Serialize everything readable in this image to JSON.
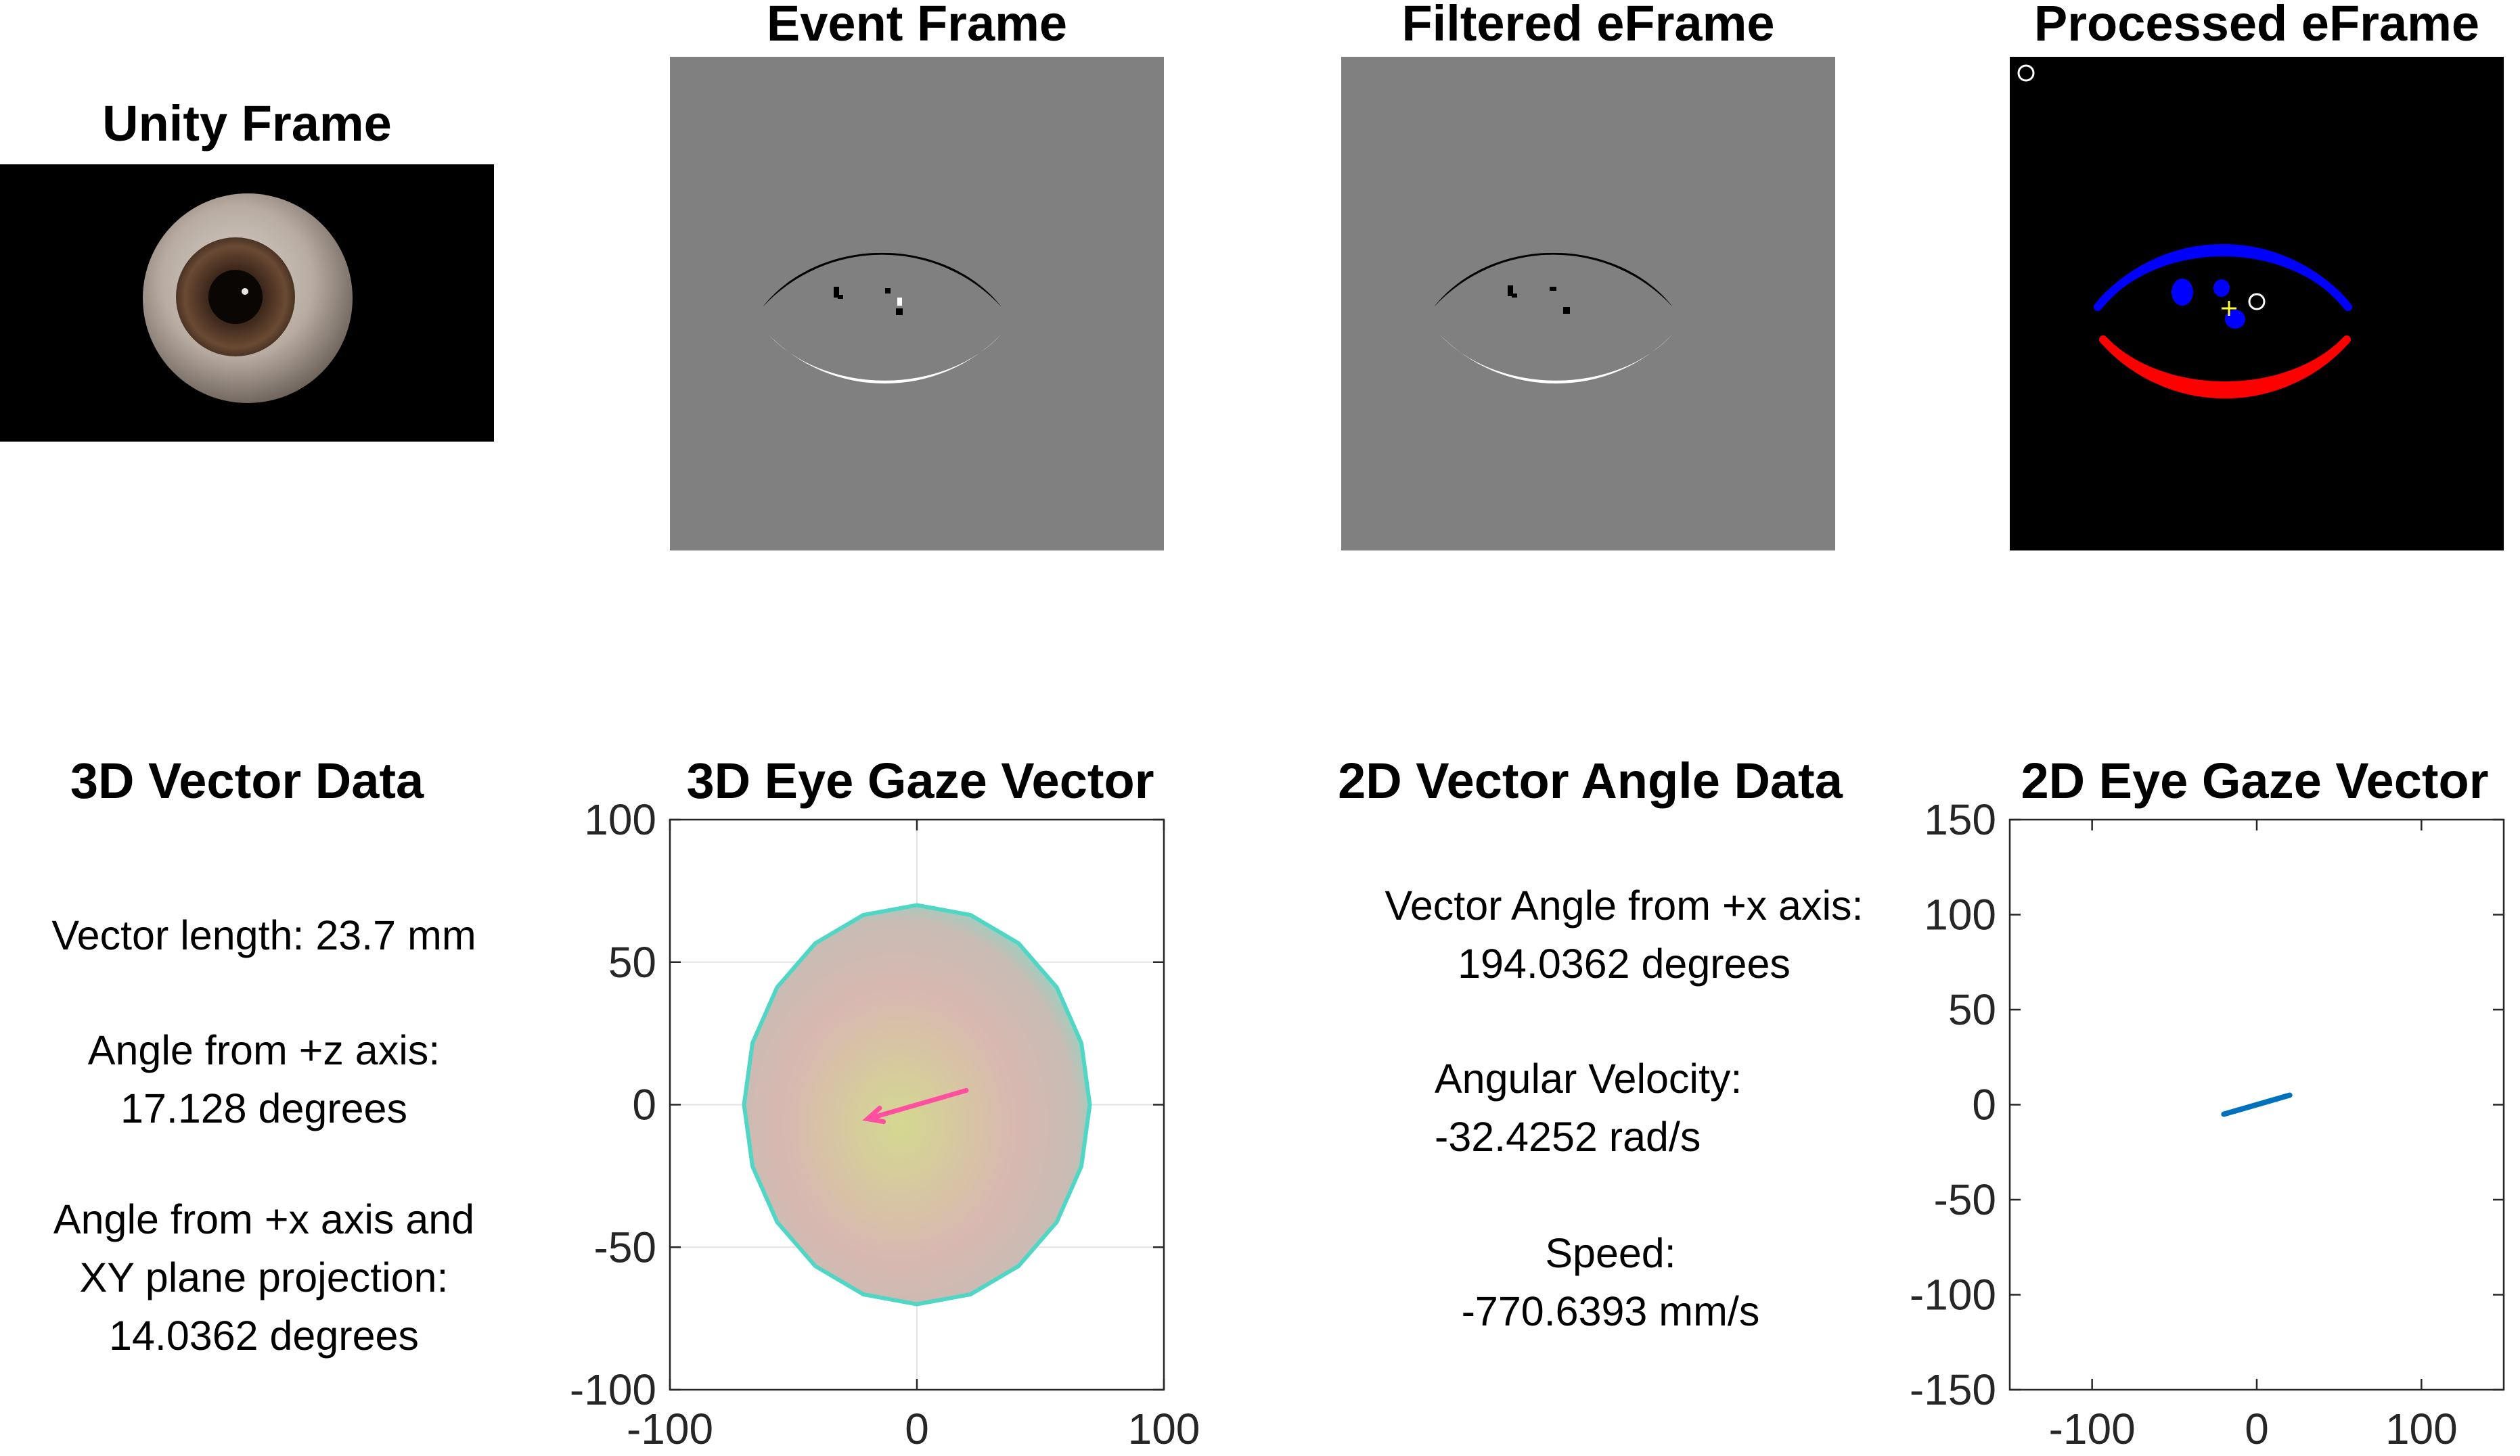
{
  "panels": {
    "unity_frame": {
      "title": "Unity Frame"
    },
    "event_frame": {
      "title": "Event Frame"
    },
    "filtered_eframe": {
      "title": "Filtered eFrame"
    },
    "processed_eframe": {
      "title": "Processed eFrame"
    }
  },
  "vector3d_data": {
    "title": "3D Vector Data",
    "length": "Vector length: 23.7 mm",
    "angle_z": "Angle from +z axis:\n17.128 degrees",
    "angle_x": "Angle from +x axis and\nXY plane projection:\n14.0362 degrees"
  },
  "vector2d_data": {
    "title": "2D Vector Angle Data",
    "angle": "Vector Angle from +x axis:\n194.0362 degrees",
    "velocity": "Angular Velocity:\n-32.4252 rad/s",
    "speed": "Speed:\n-770.6393 mm/s"
  },
  "colors": {
    "frame_gray": "#808080",
    "frame_black": "#000000",
    "blue_blob": "#0000ff",
    "red_blob": "#ff0000",
    "gaze_pink": "#ff4fa0",
    "gaze_blue": "#0072bd",
    "sphere_edge": "#4fd6c4"
  },
  "chart_data": [
    {
      "type": "line",
      "title": "3D Eye Gaze Vector",
      "xlabel": "",
      "ylabel": "",
      "xlim": [
        -100,
        100
      ],
      "ylim": [
        -100,
        100
      ],
      "xticks": [
        -100,
        0,
        100
      ],
      "yticks": [
        -100,
        -50,
        0,
        50,
        100
      ],
      "grid": true,
      "series": [
        {
          "x": [
            20,
            -20
          ],
          "y": [
            5,
            -5
          ]
        }
      ],
      "sphere_radius": 70
    },
    {
      "type": "line",
      "title": "2D Eye Gaze Vector",
      "xlabel": "",
      "ylabel": "",
      "xlim": [
        -150,
        150
      ],
      "ylim": [
        -150,
        150
      ],
      "xticks": [
        -100,
        0,
        100
      ],
      "yticks": [
        -150,
        -100,
        -50,
        0,
        50,
        100,
        150
      ],
      "grid": false,
      "series": [
        {
          "x": [
            -20,
            20
          ],
          "y": [
            -5,
            5
          ]
        }
      ]
    }
  ]
}
